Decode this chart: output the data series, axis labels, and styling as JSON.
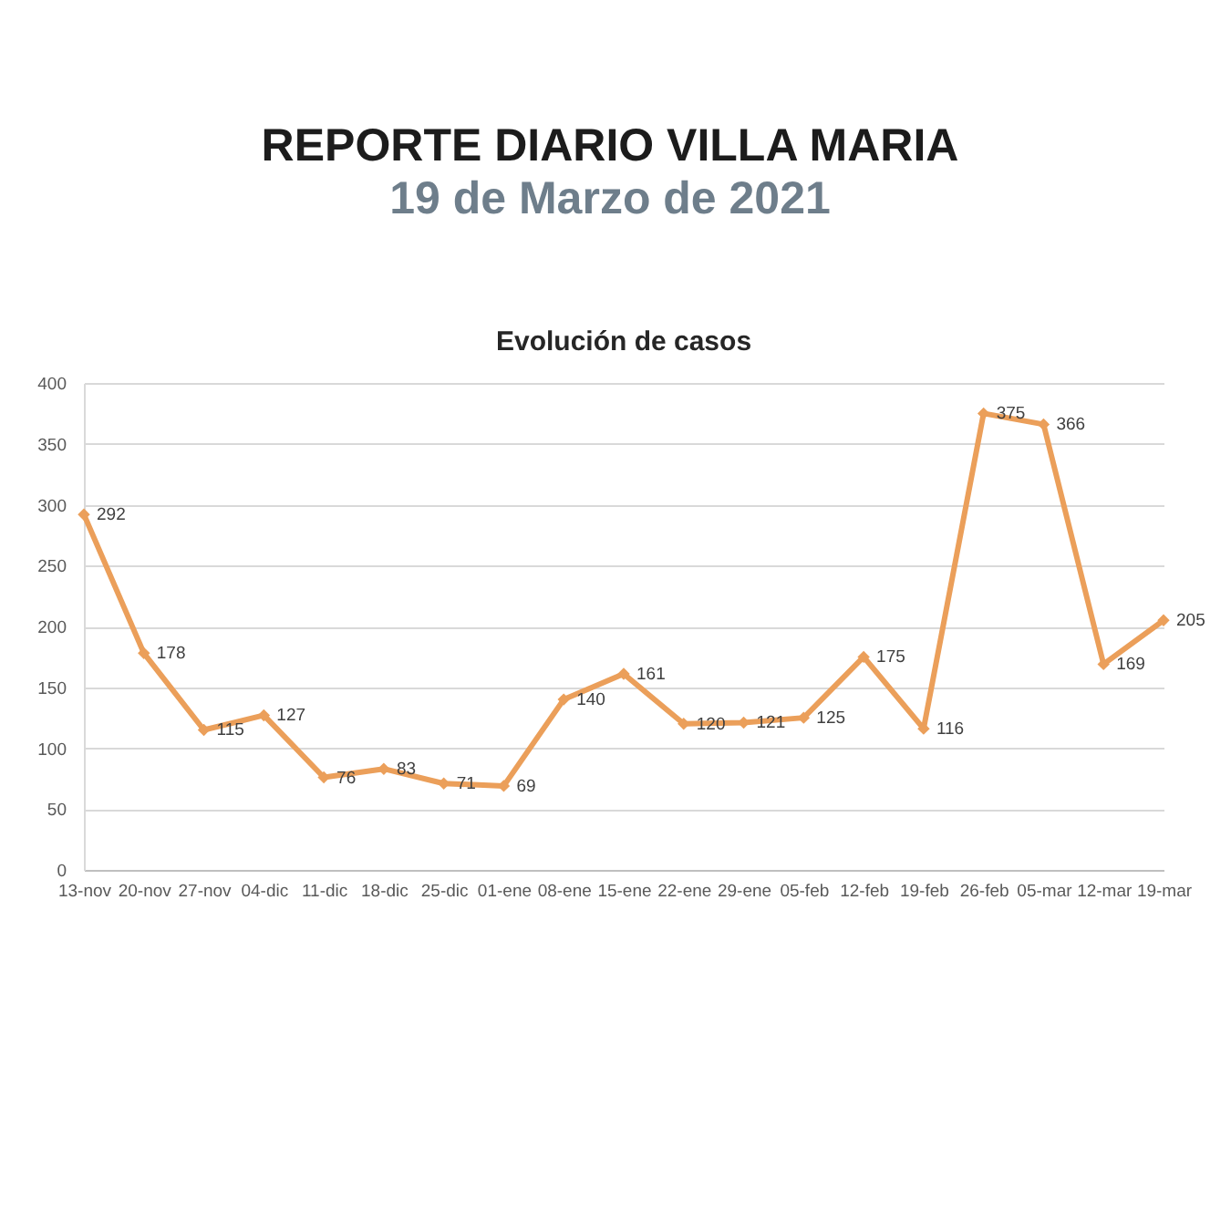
{
  "chart_data": {
    "type": "line",
    "title": "REPORTE DIARIO VILLA MARIA",
    "subtitle": "19 de Marzo de 2021",
    "annotations": [
      "Evolución de casos"
    ],
    "categories": [
      "13-nov",
      "20-nov",
      "27-nov",
      "04-dic",
      "11-dic",
      "18-dic",
      "25-dic",
      "01-ene",
      "08-ene",
      "15-ene",
      "22-ene",
      "29-ene",
      "05-feb",
      "12-feb",
      "19-feb",
      "26-feb",
      "05-mar",
      "12-mar",
      "19-mar"
    ],
    "values": [
      292,
      178,
      115,
      127,
      76,
      83,
      71,
      69,
      140,
      161,
      120,
      121,
      125,
      175,
      116,
      375,
      366,
      169,
      205
    ],
    "color": "#eb9f5a",
    "marker": "diamond",
    "data_labels": true,
    "ylim": [
      0,
      400
    ],
    "yticks": [
      0,
      50,
      100,
      150,
      200,
      250,
      300,
      350,
      400
    ],
    "grid": "y"
  }
}
